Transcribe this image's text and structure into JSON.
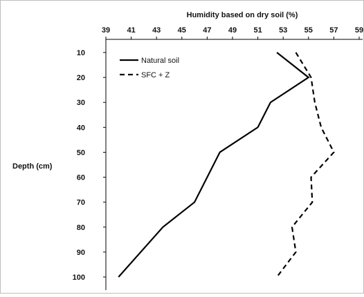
{
  "chart_data": {
    "type": "line",
    "title": "",
    "xlabel": "Humidity based on dry soil (%)",
    "ylabel": "Depth (cm)",
    "x_axis_position": "top",
    "y_axis_inverted": true,
    "xlim": [
      39,
      59
    ],
    "ylim": [
      10,
      100
    ],
    "x_ticks": [
      "39",
      "41",
      "43",
      "45",
      "47",
      "49",
      "51",
      "53",
      "55",
      "57",
      "59"
    ],
    "y_ticks": [
      "10",
      "20",
      "30",
      "40",
      "50",
      "60",
      "70",
      "80",
      "90",
      "100"
    ],
    "grid": false,
    "legend_position": "upper-left",
    "series": [
      {
        "name": "Natural soil",
        "line_style": "solid",
        "color": "#000000",
        "x": [
          52.5,
          55,
          52,
          51,
          48,
          46,
          43.5,
          40
        ],
        "y": [
          10,
          20,
          30,
          40,
          50,
          70,
          80,
          100
        ]
      },
      {
        "name": "SFC + Z",
        "line_style": "dashed",
        "color": "#000000",
        "x": [
          54,
          55.2,
          55.5,
          56,
          57,
          55.2,
          55.3,
          53.7,
          54,
          52.5
        ],
        "y": [
          10,
          20,
          30,
          40,
          50,
          60,
          70,
          80,
          90,
          100
        ]
      }
    ]
  }
}
